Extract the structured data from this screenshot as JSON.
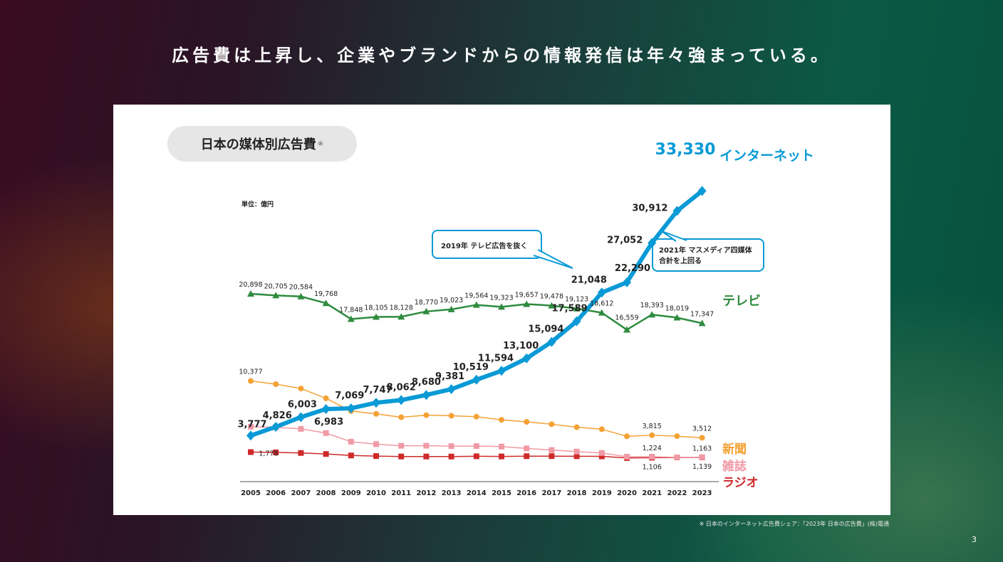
{
  "headline": "広告費は上昇し、企業やブランドからの情報発信は年々強まっている。",
  "panel_title": "日本の媒体別広告費",
  "panel_title_mark": "※",
  "unit_label": "単位：億円",
  "footnote": "※ 日本のインターネット広告費シェア：「2023年 日本の広告費」(株)電通",
  "page_number": "3",
  "callouts": {
    "tv_overtake": "2019年 テレビ広告を抜く",
    "mass_over_line1": "2021年 マスメディア四媒体",
    "mass_over_line2": "合計を上回る"
  },
  "colors": {
    "internet": "#0a9ad6",
    "tv": "#2e8b3e",
    "newspaper": "#f4a236",
    "magazine": "#f09aa6",
    "radio": "#cf2a2a"
  },
  "chart_data": {
    "type": "line",
    "x": [
      "2005",
      "2006",
      "2007",
      "2008",
      "2009",
      "2010",
      "2011",
      "2012",
      "2013",
      "2014",
      "2015",
      "2016",
      "2017",
      "2018",
      "2019",
      "2020",
      "2021",
      "2022",
      "2023"
    ],
    "ylim": [
      0,
      35000
    ],
    "series": [
      {
        "name": "インターネット",
        "values": [
          3777,
          4826,
          6003,
          6983,
          7069,
          7747,
          8062,
          8680,
          9381,
          10519,
          11594,
          13100,
          15094,
          17589,
          21048,
          22290,
          27052,
          30912,
          33330
        ],
        "labels": {
          "0": "3,777",
          "1": "4,826",
          "2": "6,003",
          "3": "6,983",
          "4": "7,069",
          "5": "7,747",
          "6": "8,062",
          "7": "8,680",
          "8": "9,381",
          "9": "10,519",
          "10": "11,594",
          "11": "13,100",
          "12": "15,094",
          "13": "17,589",
          "14": "21,048",
          "15": "22,290",
          "16": "27,052",
          "17": "30,912",
          "18": "33,330"
        }
      },
      {
        "name": "テレビ",
        "values": [
          20898,
          20705,
          20584,
          19768,
          17848,
          18105,
          18128,
          18770,
          19023,
          19564,
          19323,
          19657,
          19478,
          19123,
          18612,
          16559,
          18393,
          18019,
          17347
        ],
        "labels": {
          "0": "20,898",
          "1": "20,705",
          "2": "20,584",
          "3": "19,768",
          "4": "17,848",
          "5": "18,105",
          "6": "18,128",
          "7": "18,770",
          "8": "19,023",
          "9": "19,564",
          "10": "19,323",
          "11": "19,657",
          "12": "19,478",
          "13": "19,123",
          "14": "18,612",
          "15": "16,559",
          "16": "18,393",
          "17": "18,019",
          "18": "17,347"
        }
      },
      {
        "name": "新聞",
        "values": [
          10377,
          9986,
          9462,
          8276,
          6739,
          6396,
          5990,
          6242,
          6170,
          6057,
          5679,
          5431,
          5147,
          4784,
          4547,
          3688,
          3815,
          3697,
          3512
        ],
        "labels": {
          "0": "10,377",
          "16": "3,815",
          "18": "3,512"
        }
      },
      {
        "name": "雑誌",
        "values": [
          4842,
          4777,
          4585,
          4078,
          3034,
          2733,
          2542,
          2551,
          2499,
          2500,
          2443,
          2223,
          2023,
          1841,
          1675,
          1223,
          1224,
          1140,
          1163
        ],
        "labels": {
          "16": "1,224",
          "18": "1,163"
        }
      },
      {
        "name": "ラジオ",
        "values": [
          1778,
          1744,
          1671,
          1549,
          1370,
          1299,
          1247,
          1246,
          1243,
          1272,
          1254,
          1285,
          1290,
          1278,
          1260,
          1066,
          1106,
          1129,
          1139
        ],
        "labels": {
          "0": "1,778",
          "16": "1,106",
          "18": "1,139"
        }
      }
    ]
  }
}
